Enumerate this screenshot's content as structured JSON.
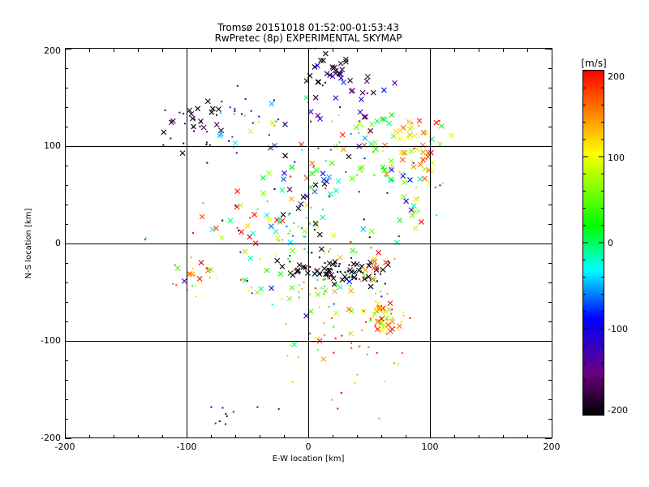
{
  "chart_data": {
    "type": "scatter",
    "title": "Tromsø 20151018 01:52:00-01:53:43",
    "subtitle": "RwPretec (8p) EXPERIMENTAL SKYMAP",
    "xlabel": "E-W location [km]",
    "ylabel": "N-S location [km]",
    "xlim": [
      -200,
      200
    ],
    "ylim": [
      -200,
      200
    ],
    "xticks": [
      "-200",
      "-100",
      "0",
      "100",
      "200"
    ],
    "yticks": [
      "-200",
      "-100",
      "0",
      "100",
      "200"
    ],
    "grid": true,
    "colorbar": {
      "label": "[m/s]",
      "range": [
        -200,
        200
      ],
      "ticks": [
        "200",
        "100",
        "0",
        "-100",
        "-200"
      ],
      "colormap": "black-purple-blue-cyan-green-yellow-red"
    },
    "marker_types": [
      "cross",
      "dot"
    ],
    "clusters": [
      {
        "cx": 18,
        "cy": 180,
        "sx": 12,
        "sy": 10,
        "n": 25,
        "v": -195,
        "dv": 10,
        "cross": 0.8
      },
      {
        "cx": 35,
        "cy": 160,
        "sx": 15,
        "sy": 18,
        "n": 28,
        "v": -130,
        "dv": 40,
        "cross": 0.8
      },
      {
        "cx": 60,
        "cy": 115,
        "sx": 22,
        "sy": 14,
        "n": 35,
        "v": 60,
        "dv": 70,
        "cross": 0.7
      },
      {
        "cx": 92,
        "cy": 100,
        "sx": 9,
        "sy": 18,
        "n": 30,
        "v": 130,
        "dv": 45,
        "cross": 0.8
      },
      {
        "cx": 85,
        "cy": 55,
        "sx": 12,
        "sy": 22,
        "n": 32,
        "v": 40,
        "dv": 110,
        "cross": 0.7
      },
      {
        "cx": 45,
        "cy": 80,
        "sx": 25,
        "sy": 20,
        "n": 35,
        "v": 0,
        "dv": 110,
        "cross": 0.6
      },
      {
        "cx": -95,
        "cy": 120,
        "sx": 16,
        "sy": 14,
        "n": 35,
        "v": -185,
        "dv": 20,
        "cross": 0.3
      },
      {
        "cx": -60,
        "cy": 130,
        "sx": 18,
        "sy": 20,
        "n": 20,
        "v": -80,
        "dv": 100,
        "cross": 0.3
      },
      {
        "cx": -20,
        "cy": 115,
        "sx": 20,
        "sy": 25,
        "n": 18,
        "v": -40,
        "dv": 120,
        "cross": 0.4
      },
      {
        "cx": -10,
        "cy": 60,
        "sx": 18,
        "sy": 15,
        "n": 24,
        "v": -40,
        "dv": 140,
        "cross": 0.5
      },
      {
        "cx": -50,
        "cy": 15,
        "sx": 30,
        "sy": 15,
        "n": 30,
        "v": 80,
        "dv": 130,
        "cross": 0.6
      },
      {
        "cx": -8,
        "cy": 15,
        "sx": 10,
        "sy": 15,
        "n": 25,
        "v": 10,
        "dv": 50,
        "cross": 0.2
      },
      {
        "cx": 28,
        "cy": -28,
        "sx": 22,
        "sy": 7,
        "n": 80,
        "v": -195,
        "dv": 10,
        "cross": 0.5
      },
      {
        "cx": 20,
        "cy": -45,
        "sx": 25,
        "sy": 10,
        "n": 40,
        "v": 50,
        "dv": 80,
        "cross": 0.3
      },
      {
        "cx": 55,
        "cy": -22,
        "sx": 8,
        "sy": 8,
        "n": 15,
        "v": 170,
        "dv": 30,
        "cross": 0.6
      },
      {
        "cx": 62,
        "cy": -75,
        "sx": 10,
        "sy": 8,
        "n": 55,
        "v": 120,
        "dv": 60,
        "cross": 0.4
      },
      {
        "cx": 30,
        "cy": -95,
        "sx": 22,
        "sy": 10,
        "n": 20,
        "v": 170,
        "dv": 40,
        "cross": 0.2
      },
      {
        "cx": 45,
        "cy": -130,
        "sx": 25,
        "sy": 20,
        "n": 14,
        "v": 140,
        "dv": 60,
        "cross": 0.1
      },
      {
        "cx": -95,
        "cy": -32,
        "sx": 10,
        "sy": 10,
        "n": 20,
        "v": 120,
        "dv": 70,
        "cross": 0.4
      },
      {
        "cx": -35,
        "cy": -40,
        "sx": 25,
        "sy": 15,
        "n": 22,
        "v": 50,
        "dv": 120,
        "cross": 0.4
      },
      {
        "cx": -55,
        "cy": -175,
        "sx": 15,
        "sy": 10,
        "n": 10,
        "v": -150,
        "dv": 60,
        "cross": 0.0
      },
      {
        "cx": 10,
        "cy": 30,
        "sx": 40,
        "sy": 35,
        "n": 50,
        "v": 0,
        "dv": 160,
        "cross": 0.5
      },
      {
        "cx": 0,
        "cy": -70,
        "sx": 30,
        "sy": 30,
        "n": 20,
        "v": 60,
        "dv": 100,
        "cross": 0.3
      }
    ]
  }
}
